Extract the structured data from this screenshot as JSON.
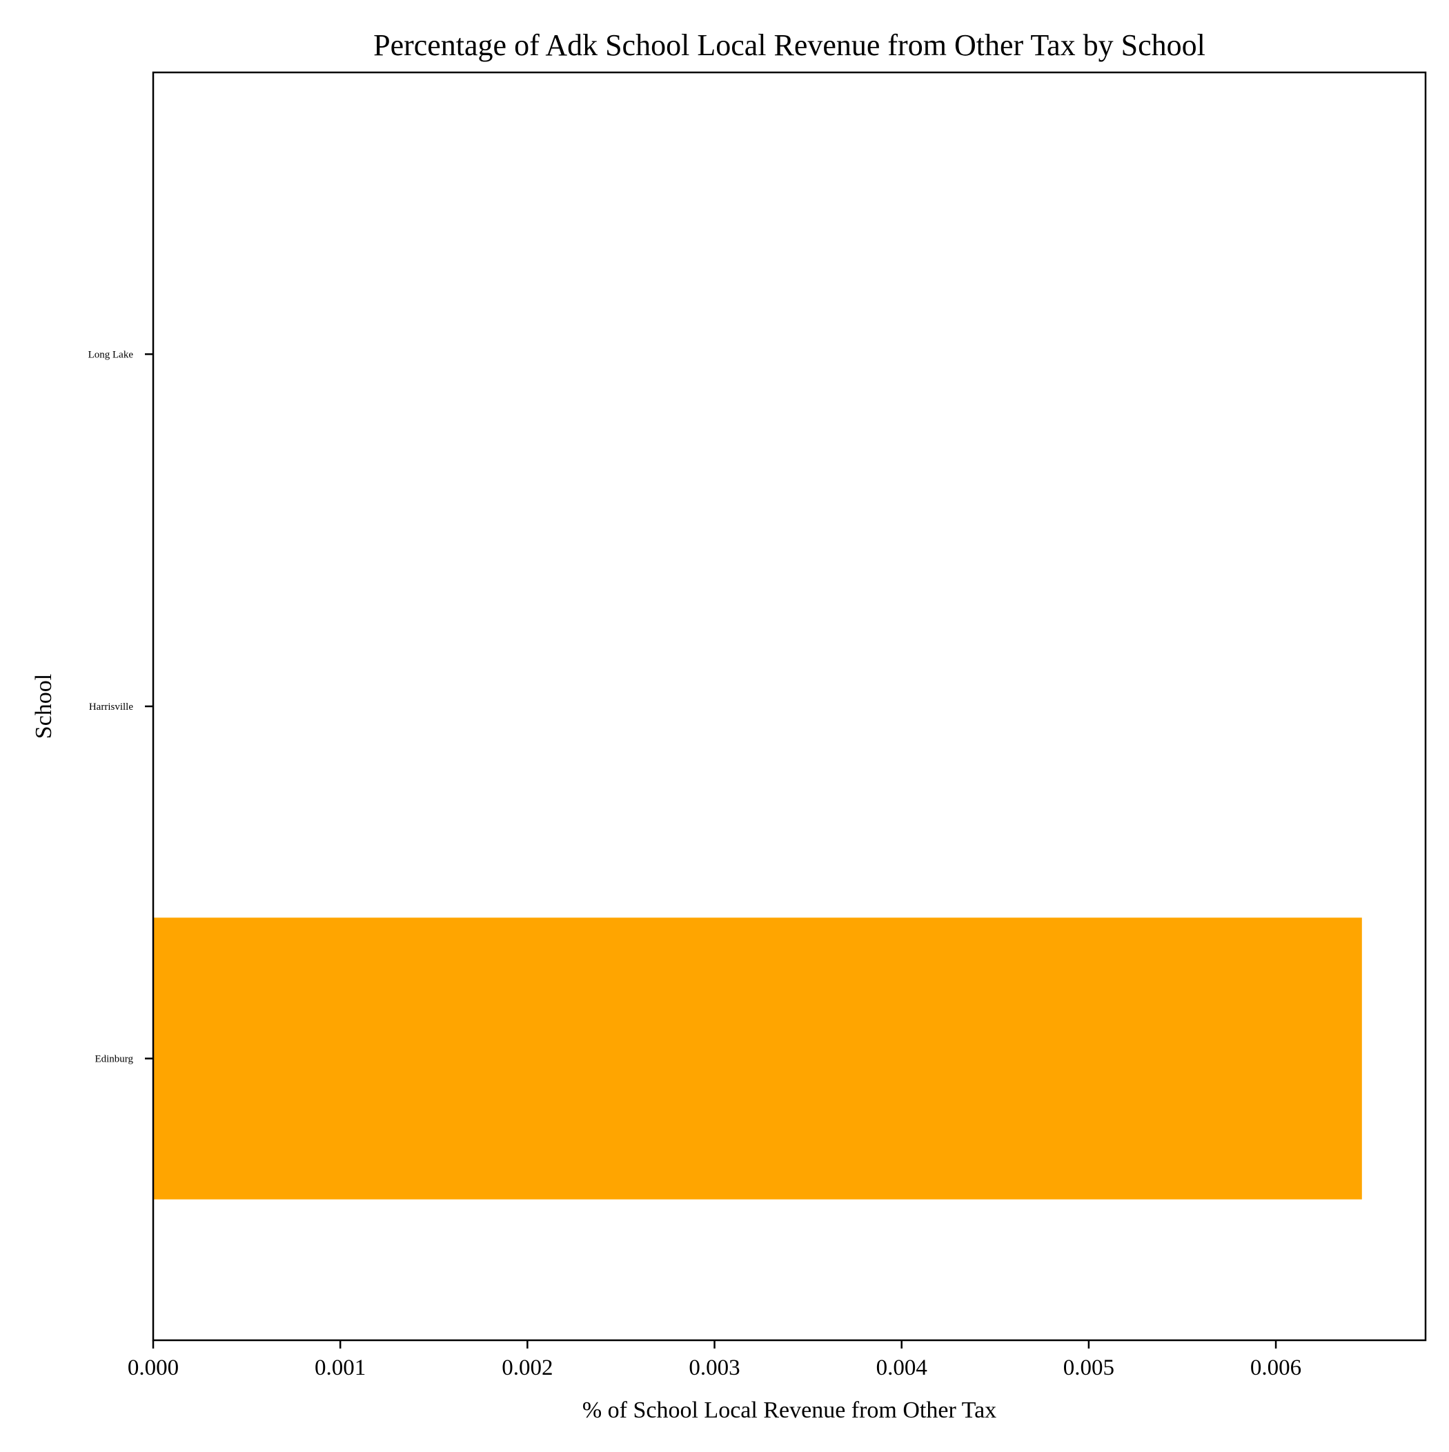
{
  "chart_data": {
    "type": "bar",
    "orientation": "horizontal",
    "title": "Percentage of Adk School Local Revenue from Other Tax by School",
    "xlabel": "% of School Local Revenue from Other Tax",
    "ylabel": "School",
    "categories": [
      "Edinburg",
      "Harrisville",
      "Long Lake"
    ],
    "values": [
      0.00646,
      0,
      0
    ],
    "xlim": [
      0,
      0.0068
    ],
    "xticks": [
      0.0,
      0.001,
      0.002,
      0.003,
      0.004,
      0.005,
      0.006
    ],
    "xtick_labels": [
      "0.000",
      "0.001",
      "0.002",
      "0.003",
      "0.004",
      "0.005",
      "0.006"
    ],
    "bar_color": "#ffa500",
    "grid": false,
    "legend": "none"
  }
}
